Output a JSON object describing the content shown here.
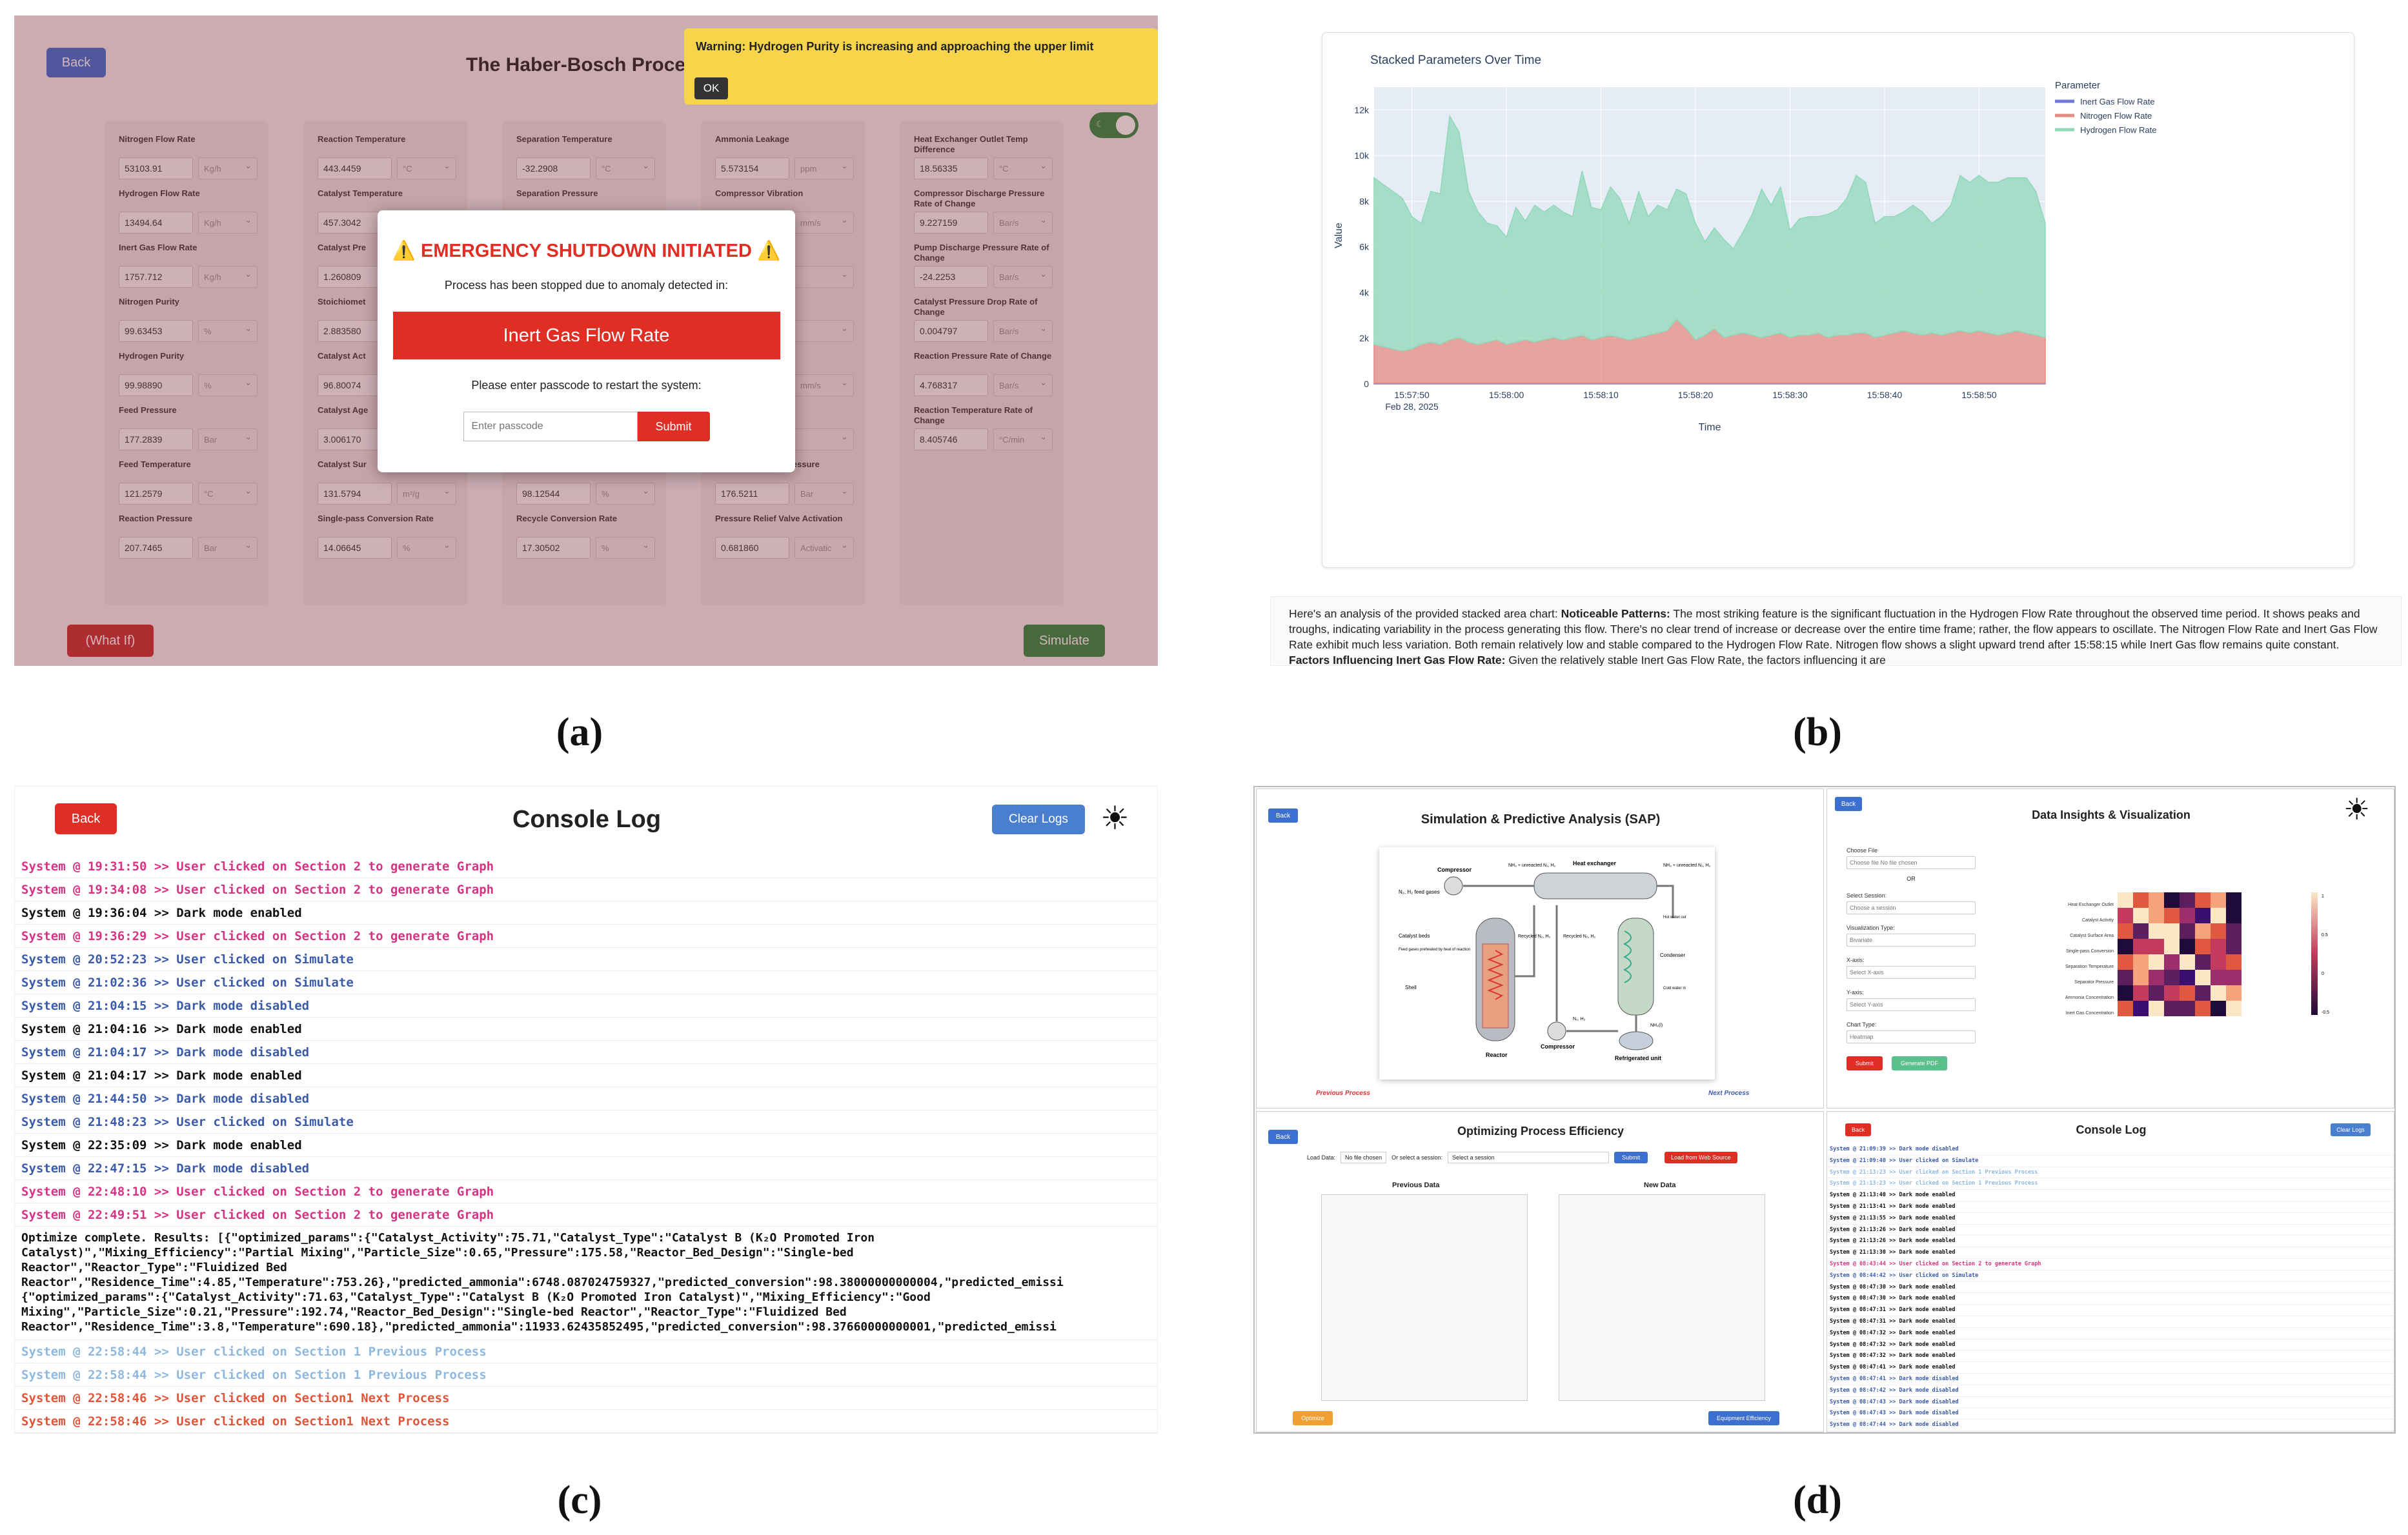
{
  "captions": {
    "a": "(a)",
    "b": "(b)",
    "c": "(c)",
    "d": "(d)"
  },
  "panel_a": {
    "back": "Back",
    "title": "The Haber-Bosch Process",
    "warning": "Warning: Hydrogen Purity is increasing and approaching the upper limit",
    "warning_ok": "OK",
    "toggle_icon": "moon-icon",
    "columns": [
      [
        {
          "label": "Nitrogen Flow Rate",
          "value": "53103.91",
          "unit": "Kg/h"
        },
        {
          "label": "Hydrogen Flow Rate",
          "value": "13494.64",
          "unit": "Kg/h"
        },
        {
          "label": "Inert Gas Flow Rate",
          "value": "1757.712",
          "unit": "Kg/h"
        },
        {
          "label": "Nitrogen Purity",
          "value": "99.63453",
          "unit": "%"
        },
        {
          "label": "Hydrogen Purity",
          "value": "99.98890",
          "unit": "%"
        },
        {
          "label": "Feed Pressure",
          "value": "177.2839",
          "unit": "Bar"
        },
        {
          "label": "Feed Temperature",
          "value": "121.2579",
          "unit": "°C"
        },
        {
          "label": "Reaction Pressure",
          "value": "207.7465",
          "unit": "Bar"
        }
      ],
      [
        {
          "label": "Reaction Temperature",
          "value": "443.4459",
          "unit": "°C"
        },
        {
          "label": "Catalyst Temperature",
          "value": "457.3042",
          "unit": "°C"
        },
        {
          "label": "Catalyst Pre",
          "value": "1.260809",
          "unit": ""
        },
        {
          "label": "Stoichiomet",
          "value": "2.883580",
          "unit": ""
        },
        {
          "label": "Catalyst Act",
          "value": "96.80074",
          "unit": ""
        },
        {
          "label": "Catalyst Age",
          "value": "3.006170",
          "unit": ""
        },
        {
          "label": "Catalyst Sur",
          "value": "131.5794",
          "unit": "m²/g"
        },
        {
          "label": "Single-pass Conversion Rate",
          "value": "14.06645",
          "unit": "%"
        }
      ],
      [
        {
          "label": "Separation Temperature",
          "value": "-32.2908",
          "unit": "°C"
        },
        {
          "label": "Separation Pressure",
          "value": "",
          "unit": ""
        },
        {
          "label": "",
          "value": "",
          "unit": ""
        },
        {
          "label": "",
          "value": "",
          "unit": ""
        },
        {
          "label": "",
          "value": "",
          "unit": ""
        },
        {
          "label": "",
          "value": "",
          "unit": ""
        },
        {
          "label": "",
          "value": "98.12544",
          "unit": "%"
        },
        {
          "label": "Recycle Conversion Rate",
          "value": "17.30502",
          "unit": "%"
        }
      ],
      [
        {
          "label": "Ammonia Leakage",
          "value": "5.573154",
          "unit": "ppm"
        },
        {
          "label": "Compressor Vibration",
          "value": "",
          "unit": "mm/s"
        },
        {
          "label": "",
          "value": "",
          "unit": ""
        },
        {
          "label": "",
          "value": "",
          "unit": ""
        },
        {
          "label": "",
          "value": "",
          "unit": "mm/s"
        },
        {
          "label": "",
          "value": "",
          "unit": ""
        },
        {
          "label": "Pump Discharge Pressure",
          "value": "176.5211",
          "unit": "Bar"
        },
        {
          "label": "Pressure Relief Valve Activation",
          "value": "0.681860",
          "unit": "Activatic"
        }
      ],
      [
        {
          "label": "Heat Exchanger Outlet Temp Difference",
          "value": "18.56335",
          "unit": "°C"
        },
        {
          "label": "Compressor Discharge Pressure Rate of Change",
          "value": "9.227159",
          "unit": "Bar/s"
        },
        {
          "label": "Pump Discharge Pressure Rate of Change",
          "value": "-24.2253",
          "unit": "Bar/s"
        },
        {
          "label": "Catalyst Pressure Drop Rate of Change",
          "value": "0.004797",
          "unit": "Bar/s"
        },
        {
          "label": "Reaction Pressure Rate of Change",
          "value": "4.768317",
          "unit": "Bar/s"
        },
        {
          "label": "Reaction Temperature Rate of Change",
          "value": "8.405746",
          "unit": "°C/min"
        }
      ]
    ],
    "modal": {
      "title": "⚠️ EMERGENCY SHUTDOWN INITIATED ⚠️",
      "message": "Process has been stopped due to anomaly detected in:",
      "anomaly": "Inert Gas Flow Rate",
      "prompt": "Please enter passcode to restart the system:",
      "placeholder": "Enter passcode",
      "submit": "Submit"
    },
    "whatif": "(What If)",
    "simulate": "Simulate"
  },
  "panel_b": {
    "analysis_html_parts": [
      "Here's an analysis of the provided stacked area chart: ",
      "Noticeable Patterns:",
      " The most striking feature is the significant fluctuation in the Hydrogen Flow Rate throughout the observed time period. It shows peaks and troughs, indicating variability in the process generating this flow. There's no clear trend of increase or decrease over the entire time frame; rather, the flow appears to oscillate. The Nitrogen Flow Rate and Inert Gas Flow Rate exhibit much less variation. Both remain relatively low and stable compared to the Hydrogen Flow Rate. Nitrogen flow shows a slight upward trend after 15:58:15 while Inert Gas flow remains quite constant. ",
      "Factors Influencing Inert Gas Flow Rate:",
      " Given the relatively stable Inert Gas Flow Rate, the factors influencing it are"
    ]
  },
  "chart_data": {
    "type": "area",
    "title": "Stacked Parameters Over Time",
    "xlabel": "Time",
    "ylabel": "Value",
    "x_ticks": [
      "15:57:50",
      "15:58:00",
      "15:58:10",
      "15:58:20",
      "15:58:30",
      "15:58:40",
      "15:58:50"
    ],
    "x_tick_sub": "Feb 28, 2025",
    "y_ticks": [
      "0",
      "2k",
      "4k",
      "6k",
      "8k",
      "10k",
      "12k"
    ],
    "ylim": [
      0,
      13000
    ],
    "x": [
      0,
      1,
      2,
      3,
      4,
      5,
      6,
      7,
      8,
      9,
      10,
      11,
      12,
      13,
      14,
      15,
      16,
      17,
      18,
      19,
      20,
      21,
      22,
      23,
      24,
      25,
      26,
      27,
      28,
      29,
      30,
      31,
      32,
      33,
      34,
      35,
      36,
      37,
      38,
      39,
      40,
      41,
      42,
      43,
      44,
      45,
      46,
      47,
      48,
      49,
      50,
      51,
      52,
      53,
      54,
      55,
      56,
      57,
      58,
      59,
      60,
      61,
      62,
      63,
      64,
      65,
      66,
      67,
      68,
      69,
      70,
      71
    ],
    "legend_title": "Parameter",
    "legend_position": "right",
    "grid": true,
    "series": [
      {
        "name": "Inert Gas Flow Rate",
        "color": "#6f7bd9",
        "values": [
          30,
          30,
          30,
          30,
          30,
          30,
          30,
          30,
          30,
          30,
          30,
          30,
          30,
          30,
          30,
          30,
          30,
          30,
          30,
          30,
          30,
          30,
          30,
          30,
          30,
          30,
          30,
          30,
          30,
          30,
          30,
          30,
          30,
          30,
          30,
          30,
          30,
          30,
          30,
          30,
          30,
          30,
          30,
          30,
          30,
          30,
          30,
          30,
          30,
          30,
          30,
          30,
          30,
          30,
          30,
          30,
          30,
          30,
          30,
          30,
          30,
          30,
          30,
          30,
          30,
          30,
          30,
          30,
          30,
          30,
          30,
          30
        ]
      },
      {
        "name": "Nitrogen Flow Rate",
        "color": "#e58a80",
        "values": [
          1700,
          1600,
          1500,
          1400,
          1500,
          1700,
          1800,
          1700,
          1900,
          2000,
          1800,
          1700,
          1800,
          1900,
          1700,
          1800,
          1900,
          1800,
          1900,
          2000,
          1900,
          2000,
          2100,
          1900,
          2000,
          2100,
          2000,
          1900,
          2000,
          2100,
          2200,
          2300,
          2800,
          2400,
          1900,
          2100,
          2400,
          2000,
          2100,
          2200,
          2100,
          2000,
          2100,
          2200,
          2000,
          2100,
          2100,
          2200,
          2000,
          2100,
          2100,
          2200,
          2200,
          2000,
          2100,
          2200,
          2300,
          2200,
          2100,
          2200,
          2100,
          2200,
          2300,
          2200,
          2300,
          2200,
          2100,
          2200,
          2300,
          2200,
          2100,
          2000
        ]
      },
      {
        "name": "Hydrogen Flow Rate",
        "color": "#8fd8b8",
        "values": [
          7300,
          7100,
          6900,
          6700,
          5800,
          5300,
          6600,
          6600,
          9800,
          9000,
          6600,
          5800,
          5200,
          5000,
          4700,
          5900,
          5200,
          6000,
          5600,
          5800,
          5600,
          5300,
          7200,
          5800,
          5600,
          6500,
          6100,
          5100,
          6400,
          5200,
          5600,
          5300,
          5700,
          5900,
          5100,
          4100,
          4400,
          4300,
          3800,
          4400,
          5300,
          6500,
          5700,
          6400,
          4700,
          5100,
          5200,
          5100,
          5400,
          5500,
          6000,
          6900,
          6600,
          5000,
          5200,
          5100,
          5200,
          5600,
          5400,
          4800,
          5200,
          5600,
          6800,
          6600,
          6800,
          6600,
          6700,
          6800,
          6700,
          6800,
          6300,
          5000
        ]
      }
    ]
  },
  "panel_c": {
    "title": "Console Log",
    "back": "Back",
    "clear": "Clear Logs",
    "theme_icon": "sun-icon",
    "lines": [
      {
        "text": "System @ 19:31:50 >> User clicked on Section 2 to generate Graph",
        "color": "#d63384"
      },
      {
        "text": "System @ 19:34:08 >> User clicked on Section 2 to generate Graph",
        "color": "#d63384"
      },
      {
        "text": "System @ 19:36:04 >> Dark mode enabled",
        "color": "#111111"
      },
      {
        "text": "System @ 19:36:29 >> User clicked on Section 2 to generate Graph",
        "color": "#d63384"
      },
      {
        "text": "System @ 20:52:23 >> User clicked on Simulate",
        "color": "#3b5ba9"
      },
      {
        "text": "System @ 21:02:36 >> User clicked on Simulate",
        "color": "#3b5ba9"
      },
      {
        "text": "System @ 21:04:15 >> Dark mode disabled",
        "color": "#3b5ba9"
      },
      {
        "text": "System @ 21:04:16 >> Dark mode enabled",
        "color": "#111111"
      },
      {
        "text": "System @ 21:04:17 >> Dark mode disabled",
        "color": "#3b5ba9"
      },
      {
        "text": "System @ 21:04:17 >> Dark mode enabled",
        "color": "#111111"
      },
      {
        "text": "System @ 21:44:50 >> Dark mode disabled",
        "color": "#3b5ba9"
      },
      {
        "text": "System @ 21:48:23 >> User clicked on Simulate",
        "color": "#3b5ba9"
      },
      {
        "text": "System @ 22:35:09 >> Dark mode enabled",
        "color": "#111111"
      },
      {
        "text": "System @ 22:47:15 >> Dark mode disabled",
        "color": "#3b5ba9"
      },
      {
        "text": "System @ 22:48:10 >> User clicked on Section 2 to generate Graph",
        "color": "#d63384"
      },
      {
        "text": "System @ 22:49:51 >> User clicked on Section 2 to generate Graph",
        "color": "#d63384"
      }
    ],
    "optimize": [
      "Optimize complete. Results: [{\"optimized_params\":{\"Catalyst_Activity\":75.71,\"Catalyst_Type\":\"Catalyst B (K₂O Promoted Iron",
      "Catalyst)\",\"Mixing_Efficiency\":\"Partial Mixing\",\"Particle_Size\":0.65,\"Pressure\":175.58,\"Reactor_Bed_Design\":\"Single-bed",
      "Reactor\",\"Reactor_Type\":\"Fluidized Bed",
      "Reactor\",\"Residence_Time\":4.85,\"Temperature\":753.26},\"predicted_ammonia\":6748.087024759327,\"predicted_conversion\":98.38000000000004,\"predicted_emissi",
      "{\"optimized_params\":{\"Catalyst_Activity\":71.63,\"Catalyst_Type\":\"Catalyst B (K₂O Promoted Iron Catalyst)\",\"Mixing_Efficiency\":\"Good",
      "Mixing\",\"Particle_Size\":0.21,\"Pressure\":192.74,\"Reactor_Bed_Design\":\"Single-bed Reactor\",\"Reactor_Type\":\"Fluidized Bed",
      "Reactor\",\"Residence_Time\":3.8,\"Temperature\":690.18},\"predicted_ammonia\":11933.62435852495,\"predicted_conversion\":98.37660000000001,\"predicted_emissi"
    ],
    "lines2": [
      {
        "text": "System @ 22:58:44 >> User clicked on Section 1 Previous Process",
        "color": "#8fb8df"
      },
      {
        "text": "System @ 22:58:44 >> User clicked on Section 1 Previous Process",
        "color": "#8fb8df"
      },
      {
        "text": "System @ 22:58:46 >> User clicked on Section1 Next Process",
        "color": "#e0553a"
      },
      {
        "text": "System @ 22:58:46 >> User clicked on Section1 Next Process",
        "color": "#e0553a"
      }
    ]
  },
  "panel_d": {
    "sap": {
      "back": "Back",
      "title": "Simulation & Predictive Analysis (SAP)",
      "prev": "Previous Process",
      "next": "Next Process",
      "labels": {
        "compressor": "Compressor",
        "feed": "N₂, H₂ feed gases",
        "heatx": "Heat exchanger",
        "unreacted": "NH₃ + unreacted N₂, H₂",
        "unreacted2": "NH₃ + unreacted N₂, H₂",
        "beds": "Catalyst beds",
        "bedsub": "Feed gases preheated by heat of reaction",
        "shell": "Shell",
        "reactor": "Reactor",
        "comp2": "Compressor",
        "recycled": "Recycled N₂, H₂",
        "recycled2": "Recycled N₂, H₂",
        "condenser": "Condenser",
        "hotwater": "Hot water out",
        "coldwater": "Cold water in",
        "nh3": "NH₃(l)",
        "n2h2": "N₂, H₂",
        "fridge": "Refrigerated unit"
      }
    },
    "insights": {
      "back": "Back",
      "title": "Data Insights & Visualization",
      "theme_icon": "sun-icon",
      "choose": "Choose File",
      "chosen": "Choose file  No file chosen",
      "or": "OR",
      "session_l": "Select Session:",
      "session_v": "Choose a session",
      "viz_l": "Visualization Type:",
      "viz_v": "Bivariate",
      "x_l": "X-axis:",
      "x_v": "Select X-axis",
      "y_l": "Y-axis:",
      "y_v": "Select Y-axis",
      "chart_l": "Chart Type:",
      "chart_v": "Heatmap",
      "submit": "Submit",
      "generate": "Generate PDF",
      "heat_rows": [
        "Heat Exchanger Outlet",
        "Catalyst Activity",
        "Catalyst Surface Area",
        "Single-pass Conversion",
        "Separation Temperature",
        "Separator Pressure",
        "Ammonia Concentration",
        "Inert Gas Concentration"
      ],
      "scale": [
        "1",
        "0.5",
        "0",
        "-0.5"
      ]
    },
    "optimize": {
      "back": "Back",
      "title": "Optimizing Process Efficiency",
      "load": "Load Data:",
      "nofile": "No file chosen",
      "or_session": "Or select a session:",
      "select": "Select a session",
      "submit": "Submit",
      "load_btn": "Load from Web Source",
      "prev": "Previous Data",
      "new": "New Data",
      "optimize": "Optimize",
      "equip": "Equipment Efficiency"
    },
    "console": {
      "back": "Back",
      "title": "Console Log",
      "clear": "Clear Logs",
      "lines": [
        {
          "text": "System @ 21:09:39 >> Dark mode disabled",
          "color": "#3b5ba9"
        },
        {
          "text": "System @ 21:09:40 >> User clicked on Simulate",
          "color": "#3b5ba9"
        },
        {
          "text": "System @ 21:13:23 >> User clicked on Section 1 Previous Process",
          "color": "#8fb8df"
        },
        {
          "text": "System @ 21:13:23 >> User clicked on Section 1 Previous Process",
          "color": "#8fb8df"
        },
        {
          "text": "System @ 21:13:40 >> Dark mode enabled",
          "color": "#111"
        },
        {
          "text": "System @ 21:13:41 >> Dark mode enabled",
          "color": "#111"
        },
        {
          "text": "System @ 21:13:55 >> Dark mode enabled",
          "color": "#111"
        },
        {
          "text": "System @ 21:13:26 >> Dark mode enabled",
          "color": "#111"
        },
        {
          "text": "System @ 21:13:26 >> Dark mode enabled",
          "color": "#111"
        },
        {
          "text": "System @ 21:13:30 >> Dark mode enabled",
          "color": "#111"
        },
        {
          "text": "System @ 08:43:44 >> User clicked on Section 2 to generate Graph",
          "color": "#d63384"
        },
        {
          "text": "System @ 08:44:42 >> User clicked on Simulate",
          "color": "#3b5ba9"
        },
        {
          "text": "System @ 08:47:30 >> Dark mode enabled",
          "color": "#111"
        },
        {
          "text": "System @ 08:47:30 >> Dark mode enabled",
          "color": "#111"
        },
        {
          "text": "System @ 08:47:31 >> Dark mode enabled",
          "color": "#111"
        },
        {
          "text": "System @ 08:47:31 >> Dark mode enabled",
          "color": "#111"
        },
        {
          "text": "System @ 08:47:32 >> Dark mode enabled",
          "color": "#111"
        },
        {
          "text": "System @ 08:47:32 >> Dark mode enabled",
          "color": "#111"
        },
        {
          "text": "System @ 08:47:32 >> Dark mode enabled",
          "color": "#111"
        },
        {
          "text": "System @ 08:47:41 >> Dark mode enabled",
          "color": "#111"
        },
        {
          "text": "System @ 08:47:41 >> Dark mode disabled",
          "color": "#3b5ba9"
        },
        {
          "text": "System @ 08:47:42 >> Dark mode disabled",
          "color": "#3b5ba9"
        },
        {
          "text": "System @ 08:47:43 >> Dark mode disabled",
          "color": "#3b5ba9"
        },
        {
          "text": "System @ 08:47:43 >> Dark mode disabled",
          "color": "#3b5ba9"
        },
        {
          "text": "System @ 08:47:44 >> Dark mode disabled",
          "color": "#3b5ba9"
        },
        {
          "text": "System @ 08:47:44 >> Dark mode disabled",
          "color": "#3b5ba9"
        }
      ]
    }
  }
}
